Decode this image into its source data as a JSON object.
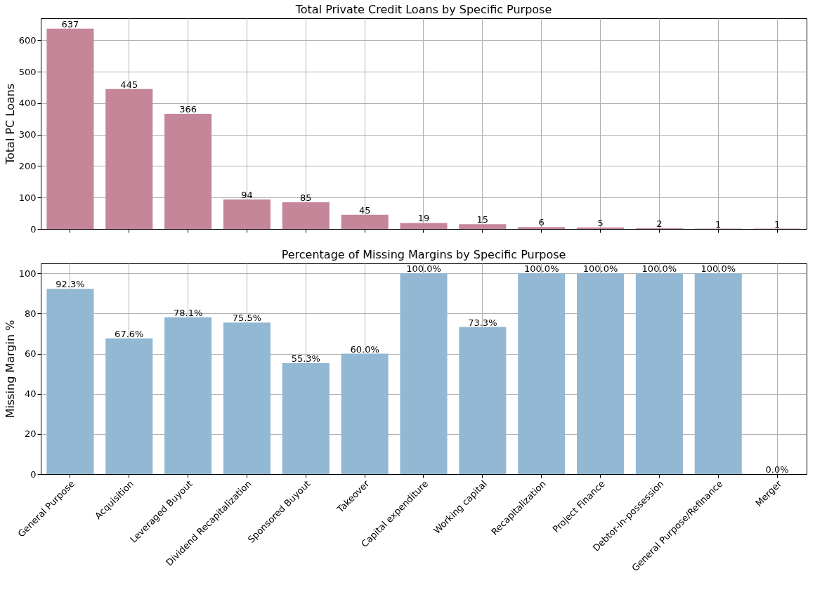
{
  "chart_data": [
    {
      "type": "bar",
      "title": "Total Private Credit Loans by Specific Purpose",
      "ylabel": "Total PC Loans",
      "categories": [
        "General Purpose",
        "Acquisition",
        "Leveraged Buyout",
        "Dividend Recapitalization",
        "Sponsored Buyout",
        "Takeover",
        "Capital expenditure",
        "Working capital",
        "Recapitalization",
        "Project Finance",
        "Debtor-in-possession",
        "General Purpose/Refinance",
        "Merger"
      ],
      "values": [
        637,
        445,
        366,
        94,
        85,
        45,
        19,
        15,
        6,
        5,
        2,
        1,
        1
      ],
      "color": "#c48698",
      "ylim": [
        0,
        670
      ],
      "yticks": [
        0,
        100,
        200,
        300,
        400,
        500,
        600
      ],
      "grid": true,
      "data_labels": true,
      "tick_labels": "y"
    },
    {
      "type": "bar",
      "title": "Percentage of Missing Margins by Specific Purpose",
      "ylabel": "Missing Margin %",
      "categories": [
        "General Purpose",
        "Acquisition",
        "Leveraged Buyout",
        "Dividend Recapitalization",
        "Sponsored Buyout",
        "Takeover",
        "Capital expenditure",
        "Working capital",
        "Recapitalization",
        "Project Finance",
        "Debtor-in-possession",
        "General Purpose/Refinance",
        "Merger"
      ],
      "values": [
        92.3,
        67.6,
        78.1,
        75.5,
        55.3,
        60.0,
        100.0,
        73.3,
        100.0,
        100.0,
        100.0,
        100.0,
        0.0
      ],
      "value_labels": [
        "92.3%",
        "67.6%",
        "78.1%",
        "75.5%",
        "55.3%",
        "60.0%",
        "100.0%",
        "73.3%",
        "100.0%",
        "100.0%",
        "100.0%",
        "100.0%",
        "0.0%"
      ],
      "color": "#92b8d3",
      "ylim": [
        0,
        105
      ],
      "yticks": [
        0,
        20,
        40,
        60,
        80,
        100
      ],
      "grid": true
    }
  ]
}
